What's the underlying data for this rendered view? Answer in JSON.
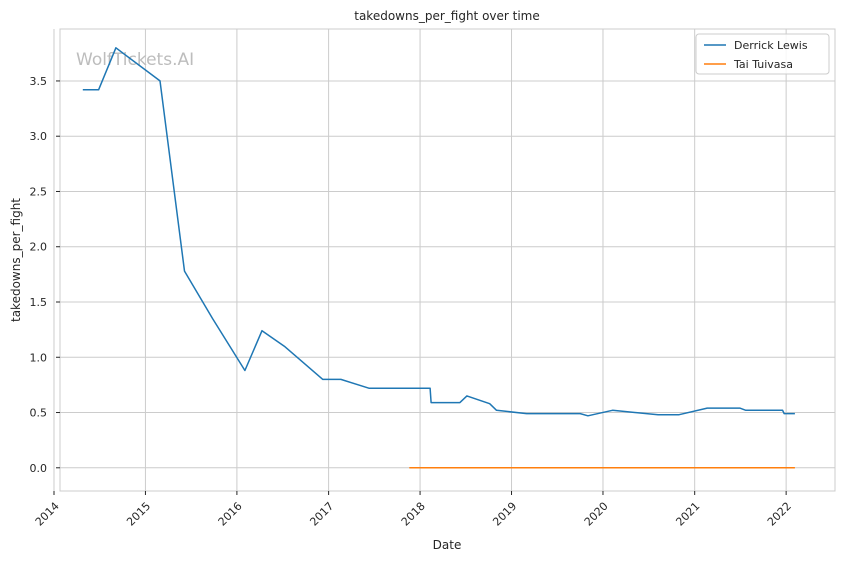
{
  "chart_data": {
    "type": "line",
    "title": "takedowns_per_fight over time",
    "xlabel": "Date",
    "ylabel": "takedowns_per_fight",
    "watermark": "WolfTickets.AI",
    "x_ticks": [
      "2014",
      "2015",
      "2016",
      "2017",
      "2018",
      "2019",
      "2020",
      "2021",
      "2022"
    ],
    "y_ticks": [
      "0.0",
      "0.5",
      "1.0",
      "1.5",
      "2.0",
      "2.5",
      "3.0",
      "3.5"
    ],
    "xlim": [
      "2014-01-25",
      "2022-07-15"
    ],
    "ylim": [
      -0.21,
      3.97
    ],
    "grid": true,
    "legend_position": "top-right",
    "series": [
      {
        "name": "Derrick Lewis",
        "color": "#1f77b4",
        "points": [
          [
            "2014-04-26",
            3.42
          ],
          [
            "2014-06-28",
            3.42
          ],
          [
            "2014-09-05",
            3.8
          ],
          [
            "2015-02-28",
            3.5
          ],
          [
            "2015-06-06",
            1.78
          ],
          [
            "2015-09-26",
            1.35
          ],
          [
            "2016-02-02",
            0.88
          ],
          [
            "2016-04-10",
            1.24
          ],
          [
            "2016-07-08",
            1.1
          ],
          [
            "2016-12-09",
            0.8
          ],
          [
            "2017-02-19",
            0.8
          ],
          [
            "2017-06-11",
            0.72
          ],
          [
            "2018-02-10",
            0.72
          ],
          [
            "2018-02-14",
            0.59
          ],
          [
            "2018-06-09",
            0.59
          ],
          [
            "2018-07-07",
            0.65
          ],
          [
            "2018-10-06",
            0.58
          ],
          [
            "2018-11-02",
            0.52
          ],
          [
            "2019-03-02",
            0.49
          ],
          [
            "2019-10-02",
            0.49
          ],
          [
            "2019-11-02",
            0.47
          ],
          [
            "2020-02-08",
            0.52
          ],
          [
            "2020-08-08",
            0.48
          ],
          [
            "2020-10-31",
            0.48
          ],
          [
            "2021-02-20",
            0.54
          ],
          [
            "2021-06-30",
            0.54
          ],
          [
            "2021-07-24",
            0.52
          ],
          [
            "2021-12-18",
            0.52
          ],
          [
            "2021-12-24",
            0.49
          ],
          [
            "2022-02-05",
            0.49
          ]
        ]
      },
      {
        "name": "Tai Tuivasa",
        "color": "#ff7f0e",
        "points": [
          [
            "2017-11-19",
            0.0
          ],
          [
            "2022-02-05",
            0.0
          ]
        ]
      }
    ]
  }
}
